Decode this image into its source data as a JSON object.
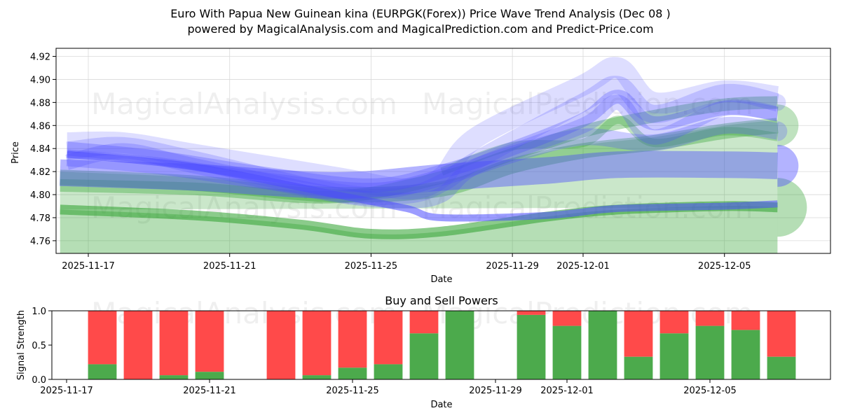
{
  "header": {
    "title_line1": "Euro With Papua New Guinean kina (EURPGK(Forex)) Price Wave Trend Analysis (Dec 08 )",
    "title_line2": "powered by MagicalAnalysis.com and MagicalPrediction.com and Predict-Price.com"
  },
  "watermarks": [
    "MagicalAnalysis.com",
    "MagicalPrediction.com"
  ],
  "colors": {
    "green": "#2ca02c",
    "green_bar": "#4caa4c",
    "red_bar": "#ff4a4a",
    "blue": "#4a4aff",
    "grid": "#d9d9d9"
  },
  "chart_data": [
    {
      "type": "area",
      "title": "",
      "xlabel": "Date",
      "ylabel": "Price",
      "x_range": [
        "2025-11-16",
        "2025-12-08"
      ],
      "ylim": [
        4.749,
        4.927
      ],
      "yticks": [
        4.76,
        4.78,
        4.8,
        4.82,
        4.84,
        4.86,
        4.88,
        4.9,
        4.92
      ],
      "ytick_labels": [
        "4.76",
        "4.78",
        "4.80",
        "4.82",
        "4.84",
        "4.86",
        "4.88",
        "4.90",
        "4.92"
      ],
      "xticks": [
        "2025-11-17",
        "2025-11-21",
        "2025-11-25",
        "2025-11-29",
        "2025-12-01",
        "2025-12-05"
      ],
      "grid": true,
      "series": [
        {
          "name": "green-wave-low",
          "color": "green",
          "x": [
            "2025-11-16.2",
            "2025-11-20",
            "2025-11-23",
            "2025-11-25",
            "2025-11-27",
            "2025-11-30",
            "2025-12-02",
            "2025-12-05",
            "2025-12-06.5"
          ],
          "values": [
            4.787,
            4.782,
            4.774,
            4.766,
            4.768,
            4.781,
            4.787,
            4.79,
            4.789
          ]
        },
        {
          "name": "green-wave-mid",
          "color": "green",
          "x": [
            "2025-11-16.2",
            "2025-11-20",
            "2025-11-24",
            "2025-11-27",
            "2025-11-29",
            "2025-12-01",
            "2025-12-03",
            "2025-12-05",
            "2025-12-06.5"
          ],
          "values": [
            4.815,
            4.81,
            4.8,
            4.805,
            4.825,
            4.838,
            4.845,
            4.855,
            4.86
          ]
        },
        {
          "name": "green-wave-high",
          "color": "green",
          "x": [
            "2025-11-16.2",
            "2025-11-20",
            "2025-11-24",
            "2025-11-27",
            "2025-11-29",
            "2025-12-01",
            "2025-12-03",
            "2025-12-05",
            "2025-12-06.5"
          ],
          "values": [
            4.808,
            4.805,
            4.798,
            4.815,
            4.835,
            4.855,
            4.868,
            4.878,
            4.88
          ]
        },
        {
          "name": "green-wave-top",
          "color": "green",
          "x": [
            "2025-11-27",
            "2025-11-29",
            "2025-12-01",
            "2025-12-02",
            "2025-12-03",
            "2025-12-05",
            "2025-12-06.5"
          ],
          "values": [
            4.82,
            4.842,
            4.845,
            4.865,
            4.845,
            4.855,
            4.85
          ]
        },
        {
          "name": "blue-wave-flat",
          "color": "blue",
          "x": [
            "2025-11-16.2",
            "2025-11-20",
            "2025-11-24",
            "2025-11-27",
            "2025-11-30",
            "2025-12-02",
            "2025-12-05",
            "2025-12-06.5"
          ],
          "values": [
            4.819,
            4.815,
            4.808,
            4.815,
            4.821,
            4.826,
            4.826,
            4.825
          ]
        },
        {
          "name": "blue-wave-low",
          "color": "blue",
          "x": [
            "2025-11-16.4",
            "2025-11-20",
            "2025-11-24",
            "2025-11-26",
            "2025-11-27",
            "2025-11-30",
            "2025-12-02",
            "2025-12-05",
            "2025-12-06.5"
          ],
          "values": [
            4.835,
            4.824,
            4.8,
            4.788,
            4.78,
            4.782,
            4.788,
            4.79,
            4.792
          ]
        },
        {
          "name": "blue-wave-a",
          "color": "blue",
          "x": [
            "2025-11-16.4",
            "2025-11-18",
            "2025-11-20",
            "2025-11-24",
            "2025-11-26",
            "2025-11-27",
            "2025-11-28",
            "2025-12-01",
            "2025-12-02",
            "2025-12-03",
            "2025-12-05",
            "2025-12-06.5"
          ],
          "values": [
            4.838,
            4.842,
            4.83,
            4.802,
            4.8,
            4.81,
            4.83,
            4.88,
            4.895,
            4.87,
            4.888,
            4.88
          ]
        },
        {
          "name": "blue-wave-b",
          "color": "blue",
          "x": [
            "2025-11-16.4",
            "2025-11-18",
            "2025-11-20",
            "2025-11-24",
            "2025-11-26",
            "2025-11-27",
            "2025-11-28",
            "2025-12-01",
            "2025-12-02",
            "2025-12-03",
            "2025-12-05",
            "2025-12-06.5"
          ],
          "values": [
            4.845,
            4.845,
            4.835,
            4.815,
            4.805,
            4.815,
            4.85,
            4.895,
            4.91,
            4.88,
            4.89,
            4.885
          ]
        },
        {
          "name": "blue-wave-c",
          "color": "blue",
          "x": [
            "2025-11-16.4",
            "2025-11-18",
            "2025-11-20",
            "2025-11-24",
            "2025-11-26",
            "2025-11-27",
            "2025-11-28",
            "2025-12-01",
            "2025-12-02",
            "2025-12-03",
            "2025-12-05",
            "2025-12-06.5"
          ],
          "values": [
            4.828,
            4.838,
            4.825,
            4.8,
            4.795,
            4.8,
            4.825,
            4.86,
            4.88,
            4.85,
            4.875,
            4.87
          ]
        },
        {
          "name": "blue-wave-d",
          "color": "blue",
          "x": [
            "2025-11-16.4",
            "2025-11-19",
            "2025-11-22",
            "2025-11-25",
            "2025-11-27",
            "2025-11-29",
            "2025-12-01",
            "2025-12-03",
            "2025-12-05",
            "2025-12-06.5"
          ],
          "values": [
            4.832,
            4.825,
            4.812,
            4.803,
            4.815,
            4.835,
            4.85,
            4.845,
            4.86,
            4.855
          ]
        },
        {
          "name": "blue-wave-e",
          "color": "blue",
          "x": [
            "2025-11-16.4",
            "2025-11-19",
            "2025-11-22",
            "2025-11-25",
            "2025-11-27",
            "2025-11-29",
            "2025-12-01",
            "2025-12-02",
            "2025-12-03",
            "2025-12-05",
            "2025-12-06.5"
          ],
          "values": [
            4.84,
            4.832,
            4.818,
            4.808,
            4.82,
            4.84,
            4.865,
            4.885,
            4.862,
            4.875,
            4.87
          ]
        }
      ]
    },
    {
      "type": "bar",
      "title": "Buy and Sell Powers",
      "xlabel": "Date",
      "ylabel": "Signal Strength",
      "ylim": [
        0,
        1
      ],
      "yticks": [
        0,
        0.5,
        1
      ],
      "ytick_labels": [
        "0.0",
        "0.5",
        "1.0"
      ],
      "xticks": [
        "2025-11-17",
        "2025-11-21",
        "2025-11-25",
        "2025-11-29",
        "2025-12-01",
        "2025-12-05"
      ],
      "categories": [
        "2025-11-18",
        "2025-11-19",
        "2025-11-20",
        "2025-11-21",
        "2025-11-23",
        "2025-11-24",
        "2025-11-25",
        "2025-11-26",
        "2025-11-27",
        "2025-11-28",
        "2025-11-30",
        "2025-12-01",
        "2025-12-02",
        "2025-12-03",
        "2025-12-04",
        "2025-12-05",
        "2025-12-06",
        "2025-12-07"
      ],
      "series": [
        {
          "name": "Buy",
          "color": "green_bar",
          "values": [
            0.22,
            0.0,
            0.06,
            0.11,
            0.0,
            0.06,
            0.17,
            0.22,
            0.67,
            1.0,
            0.94,
            0.78,
            1.0,
            0.33,
            0.67,
            0.78,
            0.72,
            0.33
          ]
        },
        {
          "name": "Sell",
          "color": "red_bar",
          "values": [
            0.78,
            1.0,
            0.94,
            0.89,
            1.0,
            0.94,
            0.83,
            0.78,
            0.33,
            0.0,
            0.06,
            0.22,
            0.0,
            0.67,
            0.33,
            0.22,
            0.28,
            0.67
          ]
        }
      ]
    }
  ]
}
